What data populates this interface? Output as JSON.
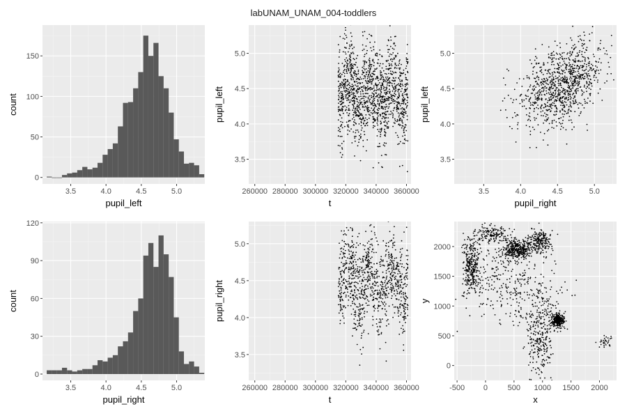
{
  "figure": {
    "title": "labUNAM_UNAM_004-toddlers",
    "colors": {
      "panel_bg": "#ebebeb",
      "grid_major": "#ffffff",
      "bar_fill": "#595959",
      "point": "#000000"
    }
  },
  "chart_data": [
    {
      "id": "hist-pupil-left",
      "type": "bar",
      "xlabel": "pupil_left",
      "ylabel": "count",
      "xlim": [
        3.1,
        5.4
      ],
      "ylim": [
        -8,
        188
      ],
      "x_ticks": [
        3.5,
        4.0,
        4.5,
        5.0
      ],
      "x_tick_labels": [
        "3.5",
        "4.0",
        "4.5",
        "5.0"
      ],
      "y_ticks": [
        0,
        50,
        100,
        150
      ],
      "y_tick_labels": [
        "0",
        "50",
        "100",
        "150"
      ],
      "bin_start": 3.16,
      "bin_width": 0.072,
      "values": [
        1,
        0,
        0,
        3,
        5,
        6,
        9,
        13,
        10,
        12,
        18,
        28,
        35,
        42,
        63,
        92,
        93,
        110,
        130,
        175,
        150,
        166,
        125,
        110,
        80,
        47,
        32,
        17,
        18,
        15,
        4
      ]
    },
    {
      "id": "scatter-t-pupil-left",
      "type": "scatter",
      "xlabel": "t",
      "ylabel": "pupil_left",
      "xlim": [
        256000,
        363000
      ],
      "ylim": [
        3.15,
        5.4
      ],
      "x_ticks": [
        260000,
        280000,
        300000,
        320000,
        340000,
        360000
      ],
      "x_tick_labels": [
        "260000",
        "280000",
        "300000",
        "320000",
        "340000",
        "360000"
      ],
      "y_ticks": [
        3.5,
        4.0,
        4.5,
        5.0
      ],
      "y_tick_labels": [
        "3.5",
        "4.0",
        "4.5",
        "5.0"
      ],
      "x_range": [
        315000,
        361000
      ],
      "y_center": 4.45,
      "y_spread": 0.33,
      "n_points": 1400
    },
    {
      "id": "scatter-right-left",
      "type": "scatter",
      "xlabel": "pupil_right",
      "ylabel": "pupil_left",
      "xlim": [
        3.1,
        5.3
      ],
      "ylim": [
        3.15,
        5.4
      ],
      "x_ticks": [
        3.5,
        4.0,
        4.5,
        5.0
      ],
      "x_tick_labels": [
        "3.5",
        "4.0",
        "4.5",
        "5.0"
      ],
      "y_ticks": [
        3.5,
        4.0,
        4.5,
        5.0
      ],
      "y_tick_labels": [
        "3.5",
        "4.0",
        "4.5",
        "5.0"
      ],
      "center": [
        4.55,
        4.55
      ],
      "spread": [
        0.28,
        0.3
      ],
      "n_points": 1000
    },
    {
      "id": "hist-pupil-right",
      "type": "bar",
      "xlabel": "pupil_right",
      "ylabel": "count",
      "xlim": [
        3.1,
        5.4
      ],
      "ylim": [
        -5,
        121
      ],
      "x_ticks": [
        3.5,
        4.0,
        4.5,
        5.0
      ],
      "x_tick_labels": [
        "3.5",
        "4.0",
        "4.5",
        "5.0"
      ],
      "y_ticks": [
        0,
        30,
        60,
        90,
        120
      ],
      "y_tick_labels": [
        "0",
        "30",
        "60",
        "90",
        "120"
      ],
      "bin_start": 3.16,
      "bin_width": 0.072,
      "values": [
        3,
        3,
        3,
        5,
        3,
        2,
        3,
        4,
        4,
        7,
        11,
        10,
        13,
        15,
        22,
        26,
        33,
        50,
        60,
        94,
        104,
        85,
        110,
        95,
        77,
        45,
        18,
        8,
        10,
        6,
        1
      ]
    },
    {
      "id": "scatter-t-pupil-right",
      "type": "scatter",
      "xlabel": "t",
      "ylabel": "pupil_right",
      "xlim": [
        256000,
        363000
      ],
      "ylim": [
        3.15,
        5.3
      ],
      "x_ticks": [
        260000,
        280000,
        300000,
        320000,
        340000,
        360000
      ],
      "x_tick_labels": [
        "260000",
        "280000",
        "300000",
        "320000",
        "340000",
        "360000"
      ],
      "y_ticks": [
        3.5,
        4.0,
        4.5,
        5.0
      ],
      "y_tick_labels": [
        "3.5",
        "4.0",
        "4.5",
        "5.0"
      ],
      "x_range": [
        315000,
        361000
      ],
      "y_center": 4.5,
      "y_spread": 0.3,
      "n_points": 1000
    },
    {
      "id": "scatter-x-y",
      "type": "scatter",
      "xlabel": "x",
      "ylabel": "y",
      "xlim": [
        -550,
        2300
      ],
      "ylim": [
        -250,
        2420
      ],
      "x_ticks": [
        -500,
        0,
        500,
        1000,
        1500,
        2000
      ],
      "x_tick_labels": [
        "-500",
        "0",
        "500",
        "1000",
        "1500",
        "2000"
      ],
      "y_ticks": [
        0,
        500,
        1000,
        1500,
        2000
      ],
      "y_tick_labels": [
        "0",
        "500",
        "1000",
        "1500",
        "2000"
      ],
      "clusters": [
        {
          "c": [
            -250,
            1700
          ],
          "s": [
            70,
            250
          ],
          "n": 300
        },
        {
          "c": [
            550,
            1950
          ],
          "s": [
            130,
            80
          ],
          "n": 350
        },
        {
          "c": [
            100,
            2200
          ],
          "s": [
            150,
            80
          ],
          "n": 150
        },
        {
          "c": [
            950,
            2100
          ],
          "s": [
            100,
            90
          ],
          "n": 200
        },
        {
          "c": [
            1270,
            750
          ],
          "s": [
            60,
            60
          ],
          "n": 300
        },
        {
          "c": [
            950,
            400
          ],
          "s": [
            120,
            300
          ],
          "n": 220
        },
        {
          "c": [
            300,
            1500
          ],
          "s": [
            350,
            300
          ],
          "n": 250
        },
        {
          "c": [
            900,
            1100
          ],
          "s": [
            250,
            300
          ],
          "n": 150
        },
        {
          "c": [
            2100,
            420
          ],
          "s": [
            80,
            50
          ],
          "n": 30
        }
      ]
    }
  ]
}
